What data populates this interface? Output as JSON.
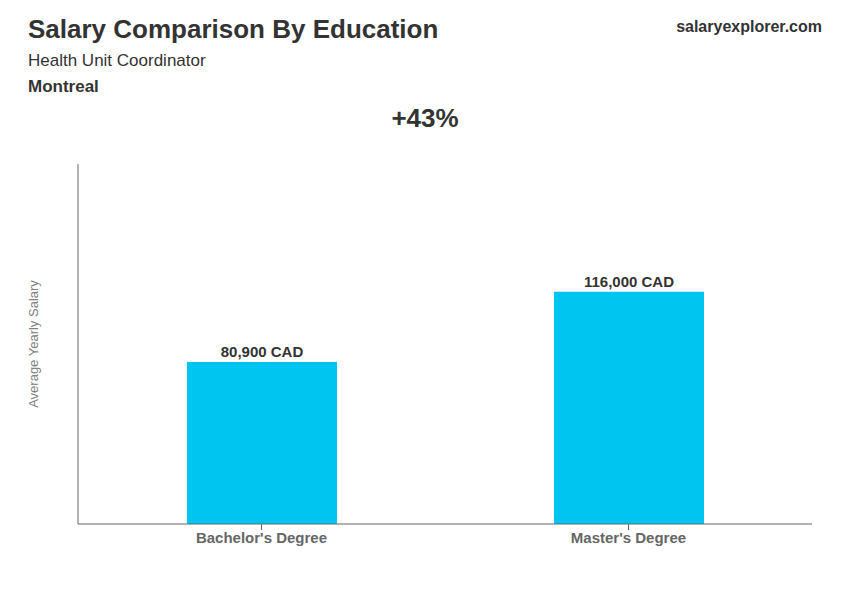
{
  "chart_data": {
    "type": "bar",
    "title": "Salary Comparison By Education",
    "subtitle": [
      "Health Unit Coordinator",
      "Montreal"
    ],
    "annotations": [
      "+43%",
      "salaryexplorer.com"
    ],
    "ylabel": "Average Yearly Salary",
    "categories": [
      "Bachelor's Degree",
      "Master's Degree"
    ],
    "values": [
      80900,
      116000
    ],
    "value_labels": [
      "80,900 CAD",
      "116,000 CAD"
    ],
    "color": "#00C5F0",
    "ylim": [
      0,
      179800
    ],
    "tick_labels": "x",
    "data_labels": true,
    "grid": false
  }
}
